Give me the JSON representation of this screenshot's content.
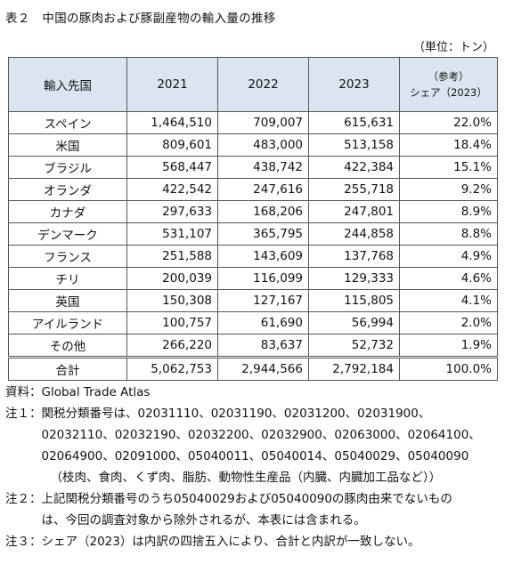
{
  "title": "表２　中国の豚肉および豚副産物の輸入量の推移",
  "unit": "（単位：トン）",
  "table": {
    "headers": {
      "origin": "輸入先国",
      "y2021": "2021",
      "y2022": "2022",
      "y2023": "2023",
      "share_note": "（参考）",
      "share": "シェア（2023）"
    },
    "rows": [
      {
        "name": "スペイン",
        "v2021": "1,464,510",
        "v2022": "709,007",
        "v2023": "615,631",
        "share": "22.0%"
      },
      {
        "name": "米国",
        "v2021": "809,601",
        "v2022": "483,000",
        "v2023": "513,158",
        "share": "18.4%"
      },
      {
        "name": "ブラジル",
        "v2021": "568,447",
        "v2022": "438,742",
        "v2023": "422,384",
        "share": "15.1%"
      },
      {
        "name": "オランダ",
        "v2021": "422,542",
        "v2022": "247,616",
        "v2023": "255,718",
        "share": "9.2%"
      },
      {
        "name": "カナダ",
        "v2021": "297,633",
        "v2022": "168,206",
        "v2023": "247,801",
        "share": "8.9%"
      },
      {
        "name": "デンマーク",
        "v2021": "531,107",
        "v2022": "365,795",
        "v2023": "244,858",
        "share": "8.8%"
      },
      {
        "name": "フランス",
        "v2021": "251,588",
        "v2022": "143,609",
        "v2023": "137,768",
        "share": "4.9%"
      },
      {
        "name": "チリ",
        "v2021": "200,039",
        "v2022": "116,099",
        "v2023": "129,333",
        "share": "4.6%"
      },
      {
        "name": "英国",
        "v2021": "150,308",
        "v2022": "127,167",
        "v2023": "115,805",
        "share": "4.1%"
      },
      {
        "name": "アイルランド",
        "v2021": "100,757",
        "v2022": "61,690",
        "v2023": "56,994",
        "share": "2.0%"
      },
      {
        "name": "その他",
        "v2021": "266,220",
        "v2022": "83,637",
        "v2023": "52,732",
        "share": "1.9%"
      }
    ],
    "total": {
      "name": "合計",
      "v2021": "5,062,753",
      "v2022": "2,944,566",
      "v2023": "2,792,184",
      "share": "100.0%"
    }
  },
  "notes": {
    "source_label": "資料：",
    "source": "Global Trade Atlas",
    "note1_label": "注１：",
    "note1_lines": [
      "関税分類番号は、02031110、02031190、02031200、02031900、",
      "02032110、02032190、02032200、02032900、02063000、02064100、",
      "02064900、02091000、05040011、05040014、05040029、05040090",
      "（枝肉、食肉、くず肉、脂肪、動物性生産品（内臓、内臓加工品など））"
    ],
    "note2_label": "注２：",
    "note2_lines": [
      "上記関税分類番号のうち05040029および05040090の豚肉由来でないもの",
      "は、今回の調査対象から除外されるが、本表には含まれる。"
    ],
    "note3_label": "注３：",
    "note3_lines": [
      "シェア（2023）は内訳の四捨五入により、合計と内訳が一致しない。"
    ]
  }
}
